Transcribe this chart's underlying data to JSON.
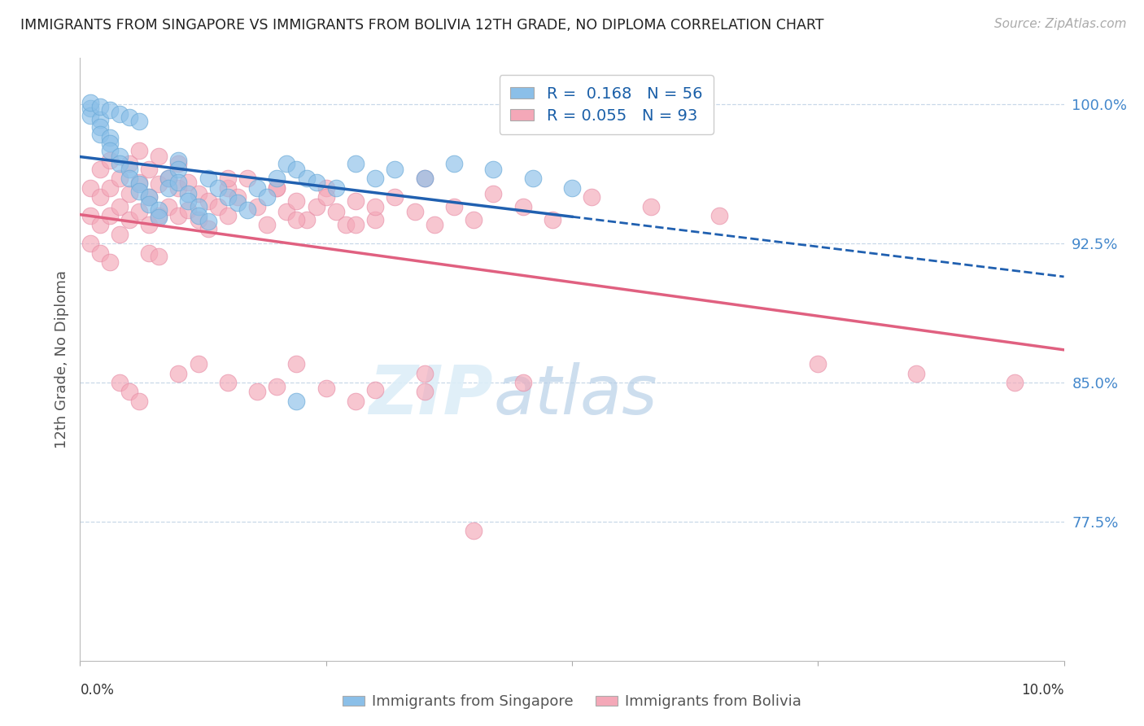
{
  "title": "IMMIGRANTS FROM SINGAPORE VS IMMIGRANTS FROM BOLIVIA 12TH GRADE, NO DIPLOMA CORRELATION CHART",
  "source": "Source: ZipAtlas.com",
  "ylabel": "12th Grade, No Diploma",
  "xlim": [
    0.0,
    0.1
  ],
  "ylim": [
    0.7,
    1.025
  ],
  "singapore_R": 0.168,
  "singapore_N": 56,
  "bolivia_R": 0.055,
  "bolivia_N": 93,
  "singapore_color": "#8bbfe8",
  "singapore_edge_color": "#6aaad8",
  "bolivia_color": "#f4a8b8",
  "bolivia_edge_color": "#e890a8",
  "singapore_line_color": "#2060b0",
  "bolivia_line_color": "#e06080",
  "background_color": "#ffffff",
  "grid_color": "#c8d8e8",
  "ytick_color": "#4488cc",
  "ytick_positions": [
    0.775,
    0.85,
    0.925,
    1.0
  ],
  "ytick_labels": [
    "77.5%",
    "85.0%",
    "92.5%",
    "100.0%"
  ],
  "sg_x": [
    0.001,
    0.001,
    0.002,
    0.002,
    0.002,
    0.003,
    0.003,
    0.003,
    0.004,
    0.004,
    0.005,
    0.005,
    0.006,
    0.006,
    0.007,
    0.007,
    0.008,
    0.008,
    0.009,
    0.009,
    0.01,
    0.01,
    0.01,
    0.011,
    0.011,
    0.012,
    0.012,
    0.013,
    0.013,
    0.014,
    0.015,
    0.016,
    0.017,
    0.018,
    0.019,
    0.02,
    0.021,
    0.022,
    0.023,
    0.024,
    0.026,
    0.028,
    0.03,
    0.032,
    0.035,
    0.038,
    0.042,
    0.046,
    0.05,
    0.001,
    0.002,
    0.003,
    0.004,
    0.005,
    0.006,
    0.022
  ],
  "sg_y": [
    0.998,
    0.994,
    0.992,
    0.988,
    0.984,
    0.982,
    0.979,
    0.975,
    0.972,
    0.968,
    0.965,
    0.96,
    0.957,
    0.953,
    0.95,
    0.946,
    0.943,
    0.939,
    0.96,
    0.955,
    0.97,
    0.965,
    0.958,
    0.952,
    0.948,
    0.945,
    0.94,
    0.937,
    0.96,
    0.955,
    0.95,
    0.947,
    0.943,
    0.955,
    0.95,
    0.96,
    0.968,
    0.965,
    0.96,
    0.958,
    0.955,
    0.968,
    0.96,
    0.965,
    0.96,
    0.968,
    0.965,
    0.96,
    0.955,
    1.001,
    0.999,
    0.997,
    0.995,
    0.993,
    0.991,
    0.84
  ],
  "bo_x": [
    0.001,
    0.001,
    0.001,
    0.002,
    0.002,
    0.002,
    0.003,
    0.003,
    0.003,
    0.004,
    0.004,
    0.004,
    0.005,
    0.005,
    0.005,
    0.006,
    0.006,
    0.006,
    0.007,
    0.007,
    0.007,
    0.008,
    0.008,
    0.008,
    0.009,
    0.009,
    0.01,
    0.01,
    0.01,
    0.011,
    0.011,
    0.012,
    0.012,
    0.013,
    0.013,
    0.014,
    0.015,
    0.015,
    0.016,
    0.017,
    0.018,
    0.019,
    0.02,
    0.021,
    0.022,
    0.023,
    0.024,
    0.025,
    0.026,
    0.027,
    0.028,
    0.03,
    0.032,
    0.034,
    0.036,
    0.038,
    0.04,
    0.042,
    0.045,
    0.048,
    0.052,
    0.058,
    0.065,
    0.075,
    0.085,
    0.095,
    0.002,
    0.003,
    0.004,
    0.005,
    0.006,
    0.007,
    0.008,
    0.01,
    0.012,
    0.015,
    0.018,
    0.022,
    0.028,
    0.035,
    0.045,
    0.022,
    0.028,
    0.035,
    0.015,
    0.02,
    0.025,
    0.03,
    0.02,
    0.025,
    0.03,
    0.035,
    0.04
  ],
  "bo_y": [
    0.955,
    0.94,
    0.925,
    0.965,
    0.95,
    0.935,
    0.97,
    0.955,
    0.94,
    0.96,
    0.945,
    0.93,
    0.968,
    0.952,
    0.938,
    0.975,
    0.958,
    0.942,
    0.965,
    0.95,
    0.935,
    0.972,
    0.957,
    0.94,
    0.96,
    0.945,
    0.968,
    0.955,
    0.94,
    0.958,
    0.943,
    0.952,
    0.938,
    0.948,
    0.933,
    0.945,
    0.955,
    0.94,
    0.95,
    0.96,
    0.945,
    0.935,
    0.955,
    0.942,
    0.948,
    0.938,
    0.945,
    0.955,
    0.942,
    0.935,
    0.948,
    0.938,
    0.95,
    0.942,
    0.935,
    0.945,
    0.938,
    0.952,
    0.945,
    0.938,
    0.95,
    0.945,
    0.94,
    0.86,
    0.855,
    0.85,
    0.92,
    0.915,
    0.85,
    0.845,
    0.84,
    0.92,
    0.918,
    0.855,
    0.86,
    0.85,
    0.845,
    0.86,
    0.84,
    0.855,
    0.85,
    0.938,
    0.935,
    0.96,
    0.96,
    0.955,
    0.95,
    0.945,
    0.848,
    0.847,
    0.846,
    0.845,
    0.77
  ]
}
